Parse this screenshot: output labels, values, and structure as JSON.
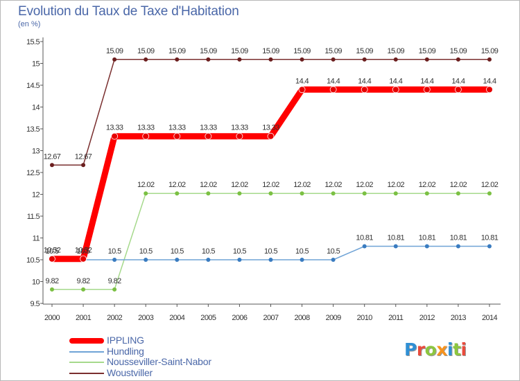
{
  "title": "Evolution du Taux de Taxe d'Habitation",
  "unit": "(en %)",
  "logo": "Proxiti",
  "logo_colors": [
    "#2f8fd4",
    "#e94b3c",
    "#8cc63f",
    "#f7931e",
    "#2f8fd4",
    "#8cc63f",
    "#e94b3c"
  ],
  "chart_data": {
    "type": "line",
    "title": "Evolution du Taux de Taxe d'Habitation",
    "ylabel": "(en %)",
    "xlabel": "",
    "ylim": [
      9.5,
      15.5
    ],
    "grid": false,
    "x": [
      "2000",
      "2001",
      "2002",
      "2003",
      "2004",
      "2005",
      "2006",
      "2007",
      "2008",
      "2009",
      "2010",
      "2011",
      "2012",
      "2013",
      "2014"
    ],
    "y_ticks": [
      "9.5",
      "10",
      "10.5",
      "11",
      "11.5",
      "12",
      "12.5",
      "13",
      "13.5",
      "14",
      "14.5",
      "15",
      "15.5"
    ],
    "series": [
      {
        "name": "Woustviller",
        "color": "#7a2f2f",
        "marker": "#6b1e1e",
        "values": [
          12.67,
          12.67,
          15.09,
          15.09,
          15.09,
          15.09,
          15.09,
          15.09,
          15.09,
          15.09,
          15.09,
          15.09,
          15.09,
          15.09,
          15.09
        ],
        "labels": [
          "12.67",
          "12.67",
          "15.09",
          "15.09",
          "15.09",
          "15.09",
          "15.09",
          "15.09",
          "15.09",
          "15.09",
          "15.09",
          "15.09",
          "15.09",
          "15.09",
          "15.09"
        ]
      },
      {
        "name": "Nousseviller-Saint-Nabor",
        "color": "#a5d98b",
        "marker": "#7bc043",
        "values": [
          9.82,
          9.82,
          9.82,
          12.02,
          12.02,
          12.02,
          12.02,
          12.02,
          12.02,
          12.02,
          12.02,
          12.02,
          12.02,
          12.02,
          12.02
        ],
        "labels": [
          "9.82",
          "9.82",
          "9.82",
          "12.02",
          "12.02",
          "12.02",
          "12.02",
          "12.02",
          "12.02",
          "12.02",
          "12.02",
          "12.02",
          "12.02",
          "12.02",
          "12.02"
        ]
      },
      {
        "name": "Hundling",
        "color": "#6fa3d6",
        "marker": "#3a7cc0",
        "values": [
          10.5,
          10.5,
          10.5,
          10.5,
          10.5,
          10.5,
          10.5,
          10.5,
          10.5,
          10.5,
          10.81,
          10.81,
          10.81,
          10.81,
          10.81
        ],
        "labels": [
          "10.5",
          "10.5",
          "10.5",
          "10.5",
          "10.5",
          "10.5",
          "10.5",
          "10.5",
          "10.5",
          "10.5",
          "10.81",
          "10.81",
          "10.81",
          "10.81",
          "10.81"
        ]
      },
      {
        "name": "IPPLING",
        "color": "#ff0000",
        "marker": "#e60000",
        "values": [
          10.52,
          10.52,
          13.33,
          13.33,
          13.33,
          13.33,
          13.33,
          13.33,
          14.4,
          14.4,
          14.4,
          14.4,
          14.4,
          14.4,
          14.4
        ],
        "labels": [
          "10.52",
          "10.52",
          "13.33",
          "13.33",
          "13.33",
          "13.33",
          "13.33",
          "13.33",
          "14.4",
          "14.4",
          "14.4",
          "14.4",
          "14.4",
          "14.4",
          "14.4"
        ]
      }
    ],
    "legend": [
      {
        "name": "IPPLING",
        "color": "#ff0000"
      },
      {
        "name": "Hundling",
        "color": "#6fa3d6"
      },
      {
        "name": "Nousseviller-Saint-Nabor",
        "color": "#a5d98b"
      },
      {
        "name": "Woustviller",
        "color": "#7a2f2f"
      }
    ],
    "legend_position": "bottom-left"
  }
}
